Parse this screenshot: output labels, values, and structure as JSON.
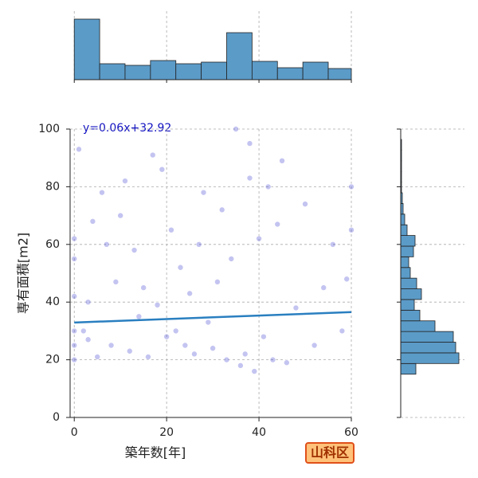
{
  "chart_data": {
    "type": "jointplot",
    "xlabel": "築年数[年]",
    "ylabel": "専有面積[m2]",
    "annotation": "y=0.06x+32.92",
    "badge": "山科区",
    "xlim": [
      -0.9,
      60
    ],
    "ylim": [
      0,
      100
    ],
    "xticks": [
      0,
      20,
      40,
      60
    ],
    "yticks": [
      0,
      20,
      40,
      60,
      80,
      100
    ],
    "grid": true,
    "point_color": "#3a3ad0",
    "line_color": "#2a7fc0",
    "hist_color": "#5b9bc8",
    "regression": {
      "slope": 0.06,
      "intercept": 32.92
    },
    "x": [
      0,
      0,
      0,
      0,
      0,
      0,
      1,
      2,
      3,
      3,
      4,
      5,
      6,
      7,
      8,
      9,
      10,
      11,
      12,
      13,
      14,
      15,
      16,
      17,
      18,
      19,
      20,
      21,
      22,
      23,
      24,
      25,
      26,
      27,
      28,
      29,
      30,
      31,
      32,
      33,
      34,
      35,
      36,
      37,
      38,
      38,
      39,
      40,
      41,
      42,
      43,
      44,
      45,
      46,
      48,
      50,
      52,
      54,
      56,
      58,
      60,
      60,
      59
    ],
    "values": [
      20,
      25,
      30,
      42,
      55,
      62,
      93,
      30,
      27,
      40,
      68,
      21,
      78,
      60,
      25,
      47,
      70,
      82,
      23,
      58,
      35,
      45,
      21,
      91,
      39,
      86,
      28,
      65,
      30,
      52,
      25,
      43,
      22,
      60,
      78,
      33,
      24,
      47,
      72,
      20,
      55,
      100,
      18,
      22,
      83,
      95,
      16,
      62,
      28,
      80,
      20,
      67,
      89,
      19,
      38,
      74,
      25,
      45,
      60,
      30,
      80,
      65,
      48
    ],
    "top_hist": {
      "bins": [
        0,
        5.5,
        11,
        16.5,
        22,
        27.5,
        33,
        38.5,
        44,
        49.5,
        55,
        60
      ],
      "counts": [
        76,
        20,
        18,
        24,
        20,
        22,
        59,
        23,
        15,
        22,
        14
      ],
      "ylim": [
        0,
        86
      ]
    },
    "right_hist": {
      "bins": [
        15,
        18.7,
        22.4,
        26.1,
        29.8,
        33.5,
        37.2,
        40.9,
        44.6,
        48.3,
        52,
        55.7,
        59.4,
        63.1,
        66.8,
        70.5,
        74.2,
        77.9,
        81.6,
        85.3,
        89,
        92.7,
        96.4,
        100.1
      ],
      "counts": [
        19,
        73,
        69,
        66,
        43,
        24,
        17,
        26,
        20,
        12,
        10,
        16,
        18,
        8,
        5,
        3,
        2,
        1,
        1,
        1,
        1,
        1,
        0
      ],
      "xlim": [
        0,
        80
      ]
    }
  }
}
